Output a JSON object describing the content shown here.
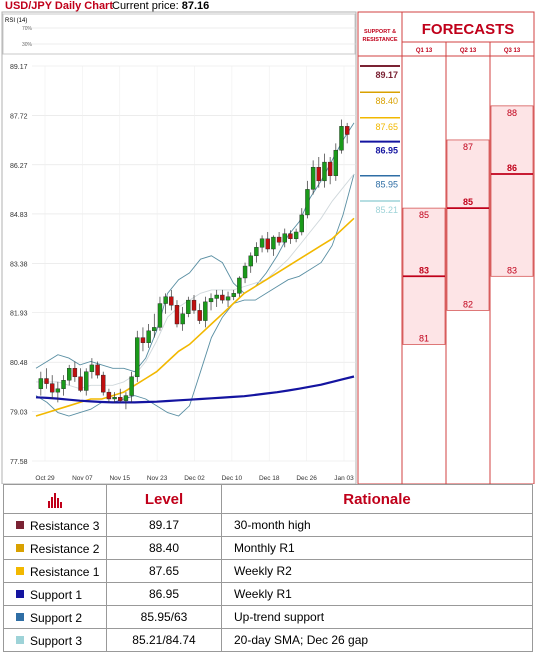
{
  "header": {
    "title": "USD/JPY Daily Chart",
    "price_label": "Current price:",
    "price_value": "87.16"
  },
  "rsi": {
    "label": "RSI (14)",
    "tick_high": "70%",
    "tick_low": "30%"
  },
  "forecast_panel": {
    "title": "FORECASTS",
    "sr_label_1": "SUPPORT &",
    "sr_label_2": "RESISTANCE",
    "quarters": [
      "Q1 13",
      "Q2 13",
      "Q3 13"
    ],
    "levels": [
      {
        "value": "89.17",
        "color": "#7a2233"
      },
      {
        "value": "88.40",
        "color": "#d9a100"
      },
      {
        "value": "87.65",
        "color": "#f2b800"
      },
      {
        "value": "86.95",
        "color": "#1414a0"
      },
      {
        "value": "85.95",
        "color": "#2f6ea5"
      },
      {
        "value": "85.21",
        "color": "#9ed3d8"
      }
    ],
    "forecasts": [
      {
        "quarter": "Q1 13",
        "high": 85,
        "mid": 83,
        "low": 81
      },
      {
        "quarter": "Q2 13",
        "high": 87,
        "mid": 85,
        "low": 82
      },
      {
        "quarter": "Q3 13",
        "high": 88,
        "mid": 86,
        "low": 83
      }
    ]
  },
  "chart_data": {
    "type": "candlestick",
    "title": "USD/JPY Daily Chart",
    "y_ticks": [
      "89.17",
      "87.72",
      "86.27",
      "84.83",
      "83.38",
      "81.93",
      "80.48",
      "79.03",
      "77.58"
    ],
    "ylim": [
      77.58,
      89.17
    ],
    "x_ticks": [
      "Oct 29",
      "Nov 07",
      "Nov 15",
      "Nov 23",
      "Dec 02",
      "Dec 10",
      "Dec 18",
      "Dec 26",
      "Jan 03"
    ],
    "candles": [
      {
        "o": 79.7,
        "h": 80.2,
        "l": 79.5,
        "c": 80.0
      },
      {
        "o": 80.0,
        "h": 80.3,
        "l": 79.7,
        "c": 79.85
      },
      {
        "o": 79.85,
        "h": 80.1,
        "l": 79.4,
        "c": 79.6
      },
      {
        "o": 79.6,
        "h": 79.9,
        "l": 79.3,
        "c": 79.7
      },
      {
        "o": 79.7,
        "h": 80.1,
        "l": 79.5,
        "c": 79.95
      },
      {
        "o": 79.95,
        "h": 80.4,
        "l": 79.8,
        "c": 80.3
      },
      {
        "o": 80.3,
        "h": 80.5,
        "l": 79.9,
        "c": 80.05
      },
      {
        "o": 80.05,
        "h": 80.3,
        "l": 79.6,
        "c": 79.65
      },
      {
        "o": 79.65,
        "h": 80.3,
        "l": 79.5,
        "c": 80.2
      },
      {
        "o": 80.2,
        "h": 80.6,
        "l": 80.0,
        "c": 80.4
      },
      {
        "o": 80.4,
        "h": 80.5,
        "l": 80.0,
        "c": 80.1
      },
      {
        "o": 80.1,
        "h": 80.2,
        "l": 79.5,
        "c": 79.6
      },
      {
        "o": 79.6,
        "h": 79.7,
        "l": 79.3,
        "c": 79.4
      },
      {
        "o": 79.4,
        "h": 79.6,
        "l": 79.3,
        "c": 79.45
      },
      {
        "o": 79.45,
        "h": 79.7,
        "l": 79.3,
        "c": 79.35
      },
      {
        "o": 79.35,
        "h": 79.6,
        "l": 79.1,
        "c": 79.5
      },
      {
        "o": 79.5,
        "h": 80.2,
        "l": 79.3,
        "c": 80.05
      },
      {
        "o": 80.05,
        "h": 81.4,
        "l": 79.9,
        "c": 81.2
      },
      {
        "o": 81.2,
        "h": 81.5,
        "l": 80.8,
        "c": 81.05
      },
      {
        "o": 81.05,
        "h": 81.6,
        "l": 80.9,
        "c": 81.4
      },
      {
        "o": 81.4,
        "h": 81.9,
        "l": 81.2,
        "c": 81.5
      },
      {
        "o": 81.5,
        "h": 82.4,
        "l": 81.4,
        "c": 82.2
      },
      {
        "o": 82.2,
        "h": 82.5,
        "l": 81.9,
        "c": 82.4
      },
      {
        "o": 82.4,
        "h": 82.6,
        "l": 82.0,
        "c": 82.15
      },
      {
        "o": 82.15,
        "h": 82.3,
        "l": 81.5,
        "c": 81.6
      },
      {
        "o": 81.6,
        "h": 82.1,
        "l": 81.4,
        "c": 81.9
      },
      {
        "o": 81.9,
        "h": 82.4,
        "l": 81.8,
        "c": 82.3
      },
      {
        "o": 82.3,
        "h": 82.45,
        "l": 81.9,
        "c": 82.0
      },
      {
        "o": 82.0,
        "h": 82.2,
        "l": 81.6,
        "c": 81.7
      },
      {
        "o": 81.7,
        "h": 82.4,
        "l": 81.5,
        "c": 82.25
      },
      {
        "o": 82.25,
        "h": 82.5,
        "l": 82.0,
        "c": 82.35
      },
      {
        "o": 82.35,
        "h": 82.6,
        "l": 82.1,
        "c": 82.45
      },
      {
        "o": 82.45,
        "h": 82.6,
        "l": 82.2,
        "c": 82.3
      },
      {
        "o": 82.3,
        "h": 82.55,
        "l": 82.1,
        "c": 82.4
      },
      {
        "o": 82.4,
        "h": 82.6,
        "l": 82.3,
        "c": 82.5
      },
      {
        "o": 82.5,
        "h": 83.0,
        "l": 82.4,
        "c": 82.95
      },
      {
        "o": 82.95,
        "h": 83.4,
        "l": 82.8,
        "c": 83.3
      },
      {
        "o": 83.3,
        "h": 83.7,
        "l": 83.1,
        "c": 83.6
      },
      {
        "o": 83.6,
        "h": 84.0,
        "l": 83.4,
        "c": 83.85
      },
      {
        "o": 83.85,
        "h": 84.2,
        "l": 83.7,
        "c": 84.1
      },
      {
        "o": 84.1,
        "h": 84.3,
        "l": 83.7,
        "c": 83.8
      },
      {
        "o": 83.8,
        "h": 84.2,
        "l": 83.6,
        "c": 84.15
      },
      {
        "o": 84.15,
        "h": 84.3,
        "l": 83.9,
        "c": 84.0
      },
      {
        "o": 84.0,
        "h": 84.4,
        "l": 83.85,
        "c": 84.25
      },
      {
        "o": 84.25,
        "h": 84.35,
        "l": 83.95,
        "c": 84.1
      },
      {
        "o": 84.1,
        "h": 84.4,
        "l": 84.0,
        "c": 84.3
      },
      {
        "o": 84.3,
        "h": 85.0,
        "l": 84.2,
        "c": 84.8
      },
      {
        "o": 84.8,
        "h": 85.8,
        "l": 84.7,
        "c": 85.55
      },
      {
        "o": 85.55,
        "h": 86.4,
        "l": 85.4,
        "c": 86.2
      },
      {
        "o": 86.2,
        "h": 86.5,
        "l": 85.6,
        "c": 85.8
      },
      {
        "o": 85.8,
        "h": 86.6,
        "l": 85.6,
        "c": 86.35
      },
      {
        "o": 86.35,
        "h": 86.5,
        "l": 85.7,
        "c": 85.95
      },
      {
        "o": 85.95,
        "h": 86.9,
        "l": 85.8,
        "c": 86.7
      },
      {
        "o": 86.7,
        "h": 87.6,
        "l": 86.6,
        "c": 87.4
      },
      {
        "o": 87.4,
        "h": 87.5,
        "l": 86.9,
        "c": 87.16
      }
    ],
    "overlays": [
      {
        "style": "upper-band",
        "color": "#5a8fa3",
        "values": [
          80.3,
          80.5,
          80.7,
          80.6,
          80.4,
          80.5,
          80.4,
          80.3,
          80.3,
          80.2,
          80.6,
          81.4,
          82.5,
          82.9,
          83.1,
          83.5,
          83.6,
          83.4,
          82.8,
          82.5,
          82.7,
          83.1,
          83.6,
          84.2,
          84.6,
          85.3,
          85.8,
          86.4,
          87.0,
          87.5
        ]
      },
      {
        "style": "lower-band",
        "color": "#5a8fa3",
        "values": [
          79.5,
          79.3,
          79.0,
          78.9,
          79.0,
          79.1,
          79.3,
          79.3,
          79.4,
          79.5,
          79.4,
          79.2,
          79.0,
          78.9,
          79.2,
          80.2,
          81.2,
          81.8,
          82.2,
          82.3,
          82.3,
          82.5,
          82.7,
          82.9,
          83.0,
          83.2,
          83.4,
          83.9,
          84.8,
          86.0
        ]
      },
      {
        "style": "middle-band",
        "color": "#d0d8dc",
        "values": [
          79.9,
          79.9,
          79.9,
          79.8,
          79.7,
          79.8,
          79.8,
          79.8,
          79.9,
          80.1,
          80.5,
          81.1,
          81.8,
          82.1,
          82.3,
          82.5,
          82.6,
          82.6,
          82.6,
          82.7,
          82.8,
          82.9,
          83.2,
          83.5,
          83.9,
          84.3,
          84.7,
          85.2,
          85.6,
          86.0
        ]
      },
      {
        "style": "long-ma-yellow",
        "color": "#f2b800",
        "values": [
          78.9,
          79.0,
          79.1,
          79.2,
          79.3,
          79.4,
          79.4,
          79.5,
          79.6,
          79.8,
          80.0,
          80.2,
          80.5,
          80.8,
          81.0,
          81.3,
          81.6,
          81.9,
          82.2,
          82.5,
          82.7,
          82.9,
          83.1,
          83.3,
          83.5,
          83.7,
          83.9,
          84.1,
          84.4,
          84.7
        ]
      },
      {
        "style": "long-ma-blue",
        "color": "#1414a0",
        "values": [
          79.45,
          79.43,
          79.41,
          79.38,
          79.35,
          79.33,
          79.31,
          79.3,
          79.3,
          79.3,
          79.31,
          79.32,
          79.34,
          79.36,
          79.38,
          79.4,
          79.42,
          79.44,
          79.46,
          79.48,
          79.52,
          79.56,
          79.6,
          79.65,
          79.7,
          79.76,
          79.82,
          79.9,
          79.98,
          80.06
        ]
      }
    ]
  },
  "table": {
    "headers": {
      "level": "Level",
      "rationale": "Rationale"
    },
    "icon_name": "bar-chart-icon",
    "rows": [
      {
        "label": "Resistance 3",
        "color": "#7a2233",
        "value": "89.17",
        "rationale": "30-month high"
      },
      {
        "label": "Resistance 2",
        "color": "#d9a100",
        "value": "88.40",
        "rationale": "Monthly R1"
      },
      {
        "label": "Resistance 1",
        "color": "#f2b800",
        "value": "87.65",
        "rationale": "Weekly R2"
      },
      {
        "label": "Support 1",
        "color": "#1414a0",
        "value": "86.95",
        "rationale": "Weekly R1"
      },
      {
        "label": "Support 2",
        "color": "#2f6ea5",
        "value": "85.95/63",
        "rationale": "Up-trend support"
      },
      {
        "label": "Support 3",
        "color": "#9ed3d8",
        "value": "85.21/84.74",
        "rationale": "20-day SMA; Dec 26 gap"
      }
    ]
  }
}
